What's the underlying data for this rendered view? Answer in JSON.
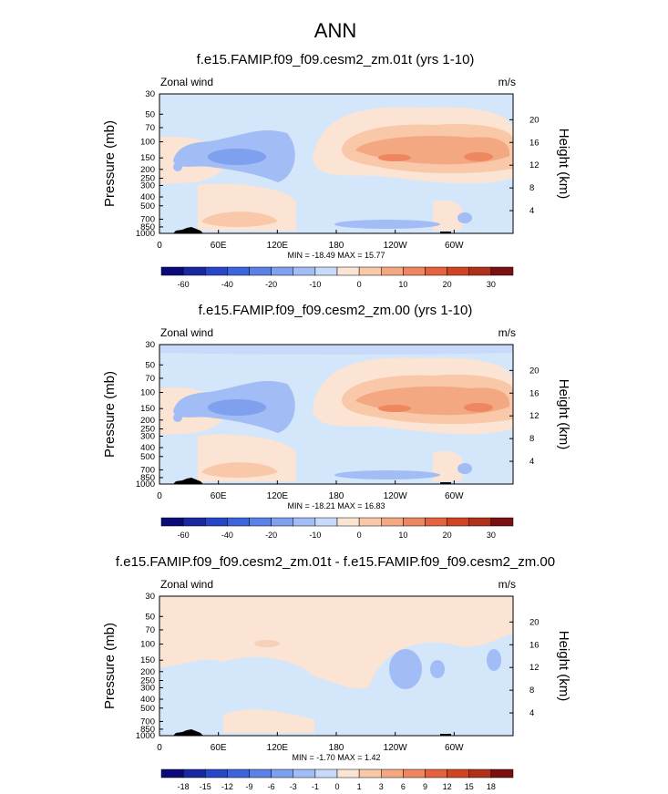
{
  "main_title": "ANN",
  "chart_data": [
    {
      "type": "heatmap",
      "title": "f.e15.FAMIP.f09_f09.cesm2_zm.01t (yrs 1-10)",
      "left_label": "Zonal wind",
      "right_label": "m/s",
      "ylabel": "Pressure (mb)",
      "y2label": "Height (km)",
      "x_ticks": [
        "0",
        "60E",
        "120E",
        "180",
        "120W",
        "60W"
      ],
      "y_ticks": [
        "30",
        "50",
        "70",
        "100",
        "150",
        "200",
        "250",
        "300",
        "400",
        "500",
        "700",
        "850",
        "1000"
      ],
      "y2_ticks": [
        "20",
        "16",
        "12",
        "8",
        "4"
      ],
      "stats": "MIN = -18.49  MAX =  15.77",
      "min": -18.49,
      "max": 15.77,
      "colorbar_labels": [
        "-60",
        "-40",
        "-20",
        "-10",
        "0",
        "10",
        "20",
        "30"
      ]
    },
    {
      "type": "heatmap",
      "title": "f.e15.FAMIP.f09_f09.cesm2_zm.00 (yrs 1-10)",
      "left_label": "Zonal wind",
      "right_label": "m/s",
      "ylabel": "Pressure (mb)",
      "y2label": "Height (km)",
      "x_ticks": [
        "0",
        "60E",
        "120E",
        "180",
        "120W",
        "60W"
      ],
      "y_ticks": [
        "30",
        "50",
        "70",
        "100",
        "150",
        "200",
        "250",
        "300",
        "400",
        "500",
        "700",
        "850",
        "1000"
      ],
      "y2_ticks": [
        "20",
        "16",
        "12",
        "8",
        "4"
      ],
      "stats": "MIN = -18.21  MAX =  16.83",
      "min": -18.21,
      "max": 16.83,
      "colorbar_labels": [
        "-60",
        "-40",
        "-20",
        "-10",
        "0",
        "10",
        "20",
        "30"
      ]
    },
    {
      "type": "heatmap",
      "title": "f.e15.FAMIP.f09_f09.cesm2_zm.01t - f.e15.FAMIP.f09_f09.cesm2_zm.00",
      "left_label": "Zonal wind",
      "right_label": "m/s",
      "ylabel": "Pressure (mb)",
      "y2label": "Height (km)",
      "x_ticks": [
        "0",
        "60E",
        "120E",
        "180",
        "120W",
        "60W"
      ],
      "y_ticks": [
        "30",
        "50",
        "70",
        "100",
        "150",
        "200",
        "250",
        "300",
        "400",
        "500",
        "700",
        "850",
        "1000"
      ],
      "y2_ticks": [
        "20",
        "16",
        "12",
        "8",
        "4"
      ],
      "stats": "MIN = -1.70  MAX =  1.42",
      "min": -1.7,
      "max": 1.42,
      "colorbar_labels": [
        "-18",
        "-15",
        "-12",
        "-9",
        "-6",
        "-3",
        "-1",
        "0",
        "1",
        "3",
        "6",
        "9",
        "12",
        "15",
        "18"
      ]
    }
  ],
  "colors": {
    "colorbar": [
      "#0a0a78",
      "#1a28a0",
      "#2846c8",
      "#3c64dc",
      "#5a82e6",
      "#7ea0ef",
      "#a2bcf6",
      "#c8dafa",
      "#fbe4d4",
      "#f8c8a8",
      "#f3a882",
      "#ee8660",
      "#e4623e",
      "#d04424",
      "#b0301a",
      "#7a1010"
    ],
    "pale_blue": "#d4e6fa",
    "pale_orange": "#fbe4d4",
    "topo": "#000000"
  }
}
